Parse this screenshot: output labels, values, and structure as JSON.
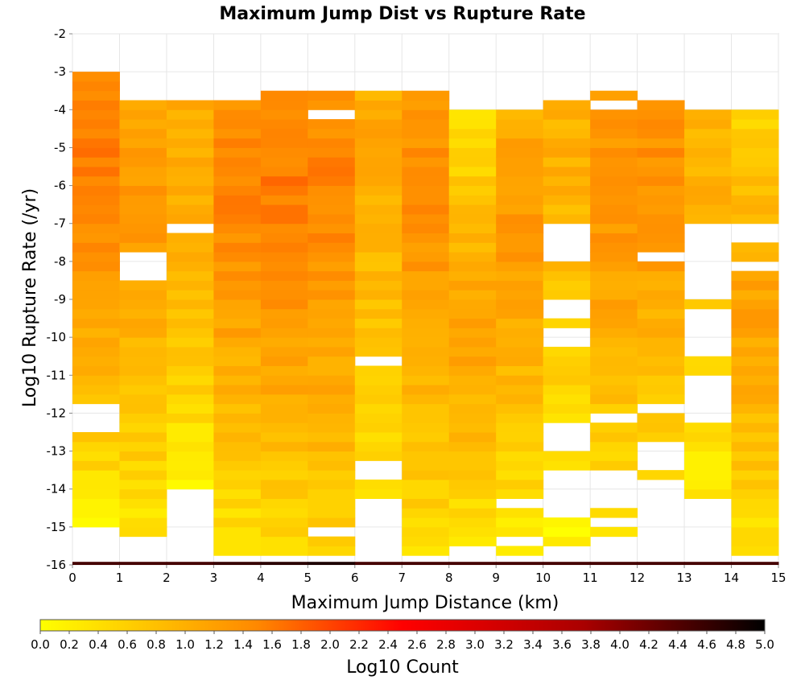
{
  "chart_data": {
    "type": "heatmap",
    "title": "Maximum Jump Dist vs Rupture Rate",
    "xlabel": "Maximum Jump Distance (km)",
    "ylabel": "Log10 Rupture Rate (/yr)",
    "xlim": [
      0,
      15
    ],
    "ylim": [
      -16,
      -2
    ],
    "x_ticks": [
      "0",
      "1",
      "2",
      "3",
      "4",
      "5",
      "6",
      "7",
      "8",
      "9",
      "10",
      "11",
      "12",
      "13",
      "14",
      "15"
    ],
    "y_ticks": [
      "-2",
      "-3",
      "-4",
      "-5",
      "-6",
      "-7",
      "-8",
      "-9",
      "-10",
      "-11",
      "-12",
      "-13",
      "-14",
      "-15",
      "-16"
    ],
    "x_bin_width": 1,
    "y_bin_width": 0.25,
    "y_bin_start": -16,
    "grid": true,
    "colorbar": {
      "label": "Log10 Count",
      "min": 0,
      "max": 5,
      "ticks": [
        "0.0",
        "0.2",
        "0.4",
        "0.6",
        "0.8",
        "1.0",
        "1.2",
        "1.4",
        "1.6",
        "1.8",
        "2.0",
        "2.2",
        "2.4",
        "2.6",
        "2.8",
        "3.0",
        "3.2",
        "3.4",
        "3.6",
        "3.8",
        "4.0",
        "4.2",
        "4.4",
        "4.6",
        "4.8",
        "5.0"
      ],
      "colors": [
        "#ffff00",
        "#ff8800",
        "#ff0000",
        "#aa0000",
        "#000000"
      ]
    },
    "columns": [
      {
        "x": "0-1",
        "top": -3.0,
        "bottom": -15.0,
        "gaps": [
          [
            -12.5,
            -11.75
          ]
        ],
        "base": 0.8,
        "peak": -5.0,
        "peak_value": 1.6,
        "low_value": 0.2
      },
      {
        "x": "1-2",
        "top": -3.75,
        "bottom": -15.25,
        "gaps": [
          [
            -8.5,
            -7.75
          ]
        ],
        "base": 0.8,
        "peak": -6.0,
        "peak_value": 1.3,
        "low_value": 0.3
      },
      {
        "x": "2-3",
        "top": -3.75,
        "bottom": -14.0,
        "gaps": [
          [
            -7.25,
            -7.0
          ]
        ],
        "base": 0.8,
        "peak": -5.5,
        "peak_value": 1.1,
        "low_value": 0.2
      },
      {
        "x": "3-4",
        "top": -3.75,
        "bottom": -15.75,
        "gaps": [],
        "base": 1.2,
        "peak": -6.0,
        "peak_value": 1.5,
        "low_value": 0.3
      },
      {
        "x": "4-5",
        "top": -3.5,
        "bottom": -15.75,
        "gaps": [],
        "base": 1.3,
        "peak": -6.0,
        "peak_value": 1.6,
        "low_value": 0.4
      },
      {
        "x": "5-6",
        "top": -3.5,
        "bottom": -15.75,
        "gaps": [
          [
            -4.25,
            -4.0
          ],
          [
            -15.25,
            -15.0
          ]
        ],
        "base": 1.2,
        "peak": -6.0,
        "peak_value": 1.5,
        "low_value": 0.5
      },
      {
        "x": "6-7",
        "top": -3.5,
        "bottom": -14.25,
        "gaps": [
          [
            -10.75,
            -10.5
          ],
          [
            -13.75,
            -13.25
          ]
        ],
        "base": 1.0,
        "peak": -5.0,
        "peak_value": 1.1,
        "low_value": 0.3
      },
      {
        "x": "7-8",
        "top": -3.5,
        "bottom": -15.75,
        "gaps": [],
        "base": 1.0,
        "peak": -6.0,
        "peak_value": 1.4,
        "low_value": 0.4
      },
      {
        "x": "8-9",
        "top": -4.0,
        "bottom": -15.5,
        "gaps": [],
        "base": 0.9,
        "peak": -9.75,
        "peak_value": 1.2,
        "low_value": 0.3
      },
      {
        "x": "9-10",
        "top": -4.0,
        "bottom": -15.75,
        "gaps": [
          [
            -14.5,
            -14.25
          ],
          [
            -15.5,
            -15.25
          ]
        ],
        "base": 0.9,
        "peak": -7.0,
        "peak_value": 1.3,
        "low_value": 0.2
      },
      {
        "x": "10-11",
        "top": -3.75,
        "bottom": -15.5,
        "gaps": [
          [
            -8.0,
            -7.0
          ],
          [
            -9.5,
            -9.0
          ],
          [
            -10.25,
            -9.75
          ],
          [
            -13.0,
            -12.25
          ],
          [
            -14.75,
            -13.5
          ]
        ],
        "base": 0.6,
        "peak": -5.0,
        "peak_value": 1.0,
        "low_value": 0.1
      },
      {
        "x": "11-12",
        "top": -3.5,
        "bottom": -15.25,
        "gaps": [
          [
            -4.0,
            -3.75
          ],
          [
            -12.25,
            -12.0
          ],
          [
            -14.5,
            -13.5
          ],
          [
            -15.0,
            -14.75
          ]
        ],
        "base": 0.7,
        "peak": -6.0,
        "peak_value": 1.4,
        "low_value": 0.2
      },
      {
        "x": "12-13",
        "top": -3.75,
        "bottom": -14.75,
        "gaps": [
          [
            -8.0,
            -7.75
          ],
          [
            -12.0,
            -11.75
          ],
          [
            -13.5,
            -12.75
          ],
          [
            -14.75,
            -13.75
          ]
        ],
        "base": 0.8,
        "peak": -5.25,
        "peak_value": 1.4,
        "low_value": 0.3
      },
      {
        "x": "13-14",
        "top": -4.0,
        "bottom": -14.25,
        "gaps": [
          [
            -9.0,
            -7.0
          ],
          [
            -10.5,
            -9.25
          ],
          [
            -12.25,
            -11.0
          ]
        ],
        "base": 0.8,
        "peak": -6.0,
        "peak_value": 1.0,
        "low_value": 0.2
      },
      {
        "x": "14-15",
        "top": -4.0,
        "bottom": -15.75,
        "gaps": [
          [
            -7.5,
            -7.0
          ],
          [
            -8.25,
            -8.0
          ]
        ],
        "base": 1.0,
        "peak": -9.25,
        "peak_value": 1.2,
        "low_value": 0.3
      }
    ],
    "bottom_row": {
      "y": -16.0,
      "values": [
        4.5,
        4.5,
        4.5,
        4.6,
        4.7,
        4.8,
        4.5,
        4.5,
        4.5,
        4.5,
        4.5,
        4.5,
        4.5,
        4.5,
        4.5
      ]
    }
  }
}
